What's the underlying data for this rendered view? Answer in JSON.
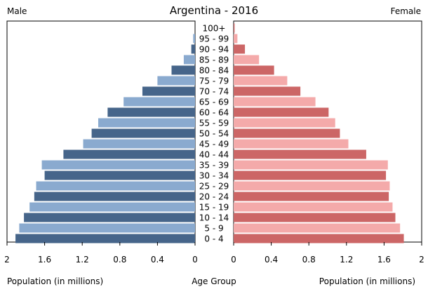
{
  "chart_data": {
    "type": "bar",
    "orientation": "horizontal-pyramid",
    "title": "Argentina - 2016",
    "left_label": "Male",
    "right_label": "Female",
    "xlabel_left": "Population (in millions)",
    "xlabel_center": "Age Group",
    "xlabel_right": "Population (in millions)",
    "xlim": [
      0,
      2
    ],
    "ticks": [
      "0",
      "0.4",
      "0.8",
      "1.2",
      "1.6",
      "2"
    ],
    "tick_values": [
      0,
      0.4,
      0.8,
      1.2,
      1.6,
      2
    ],
    "grid": false,
    "categories": [
      "100+",
      "95 - 99",
      "90 - 94",
      "85 - 89",
      "80 - 84",
      "75 - 79",
      "70 - 74",
      "65 - 69",
      "60 - 64",
      "55 - 59",
      "50 - 54",
      "45 - 49",
      "40 - 44",
      "35 - 39",
      "30 - 34",
      "25 - 29",
      "20 - 24",
      "15 - 19",
      "10 - 14",
      "5 - 9",
      "0 - 4"
    ],
    "series": [
      {
        "name": "Male",
        "values": [
          0.0,
          0.02,
          0.04,
          0.12,
          0.25,
          0.4,
          0.56,
          0.76,
          0.93,
          1.03,
          1.1,
          1.19,
          1.4,
          1.63,
          1.6,
          1.69,
          1.71,
          1.76,
          1.82,
          1.87,
          1.91
        ]
      },
      {
        "name": "Female",
        "values": [
          0.01,
          0.04,
          0.12,
          0.27,
          0.43,
          0.57,
          0.71,
          0.87,
          1.01,
          1.08,
          1.13,
          1.22,
          1.41,
          1.64,
          1.62,
          1.66,
          1.65,
          1.69,
          1.72,
          1.77,
          1.81
        ]
      }
    ],
    "colors": {
      "male_dark": "#46658a",
      "male_light": "#8aaacf",
      "female_dark": "#cc6666",
      "female_light": "#f4aaaa"
    }
  }
}
